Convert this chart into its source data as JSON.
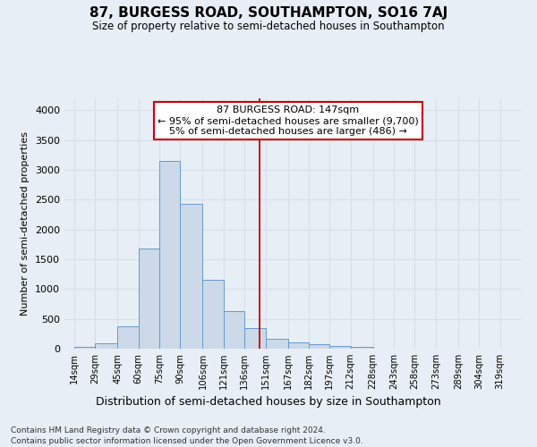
{
  "title": "87, BURGESS ROAD, SOUTHAMPTON, SO16 7AJ",
  "subtitle": "Size of property relative to semi-detached houses in Southampton",
  "xlabel_dist": "Distribution of semi-detached houses by size in Southampton",
  "ylabel": "Number of semi-detached properties",
  "footer1": "Contains HM Land Registry data © Crown copyright and database right 2024.",
  "footer2": "Contains public sector information licensed under the Open Government Licence v3.0.",
  "property_label": "87 BURGESS ROAD: 147sqm",
  "smaller_label": "← 95% of semi-detached houses are smaller (9,700)",
  "larger_label": "5% of semi-detached houses are larger (486) →",
  "bar_left_edges": [
    14,
    29,
    45,
    60,
    75,
    90,
    106,
    121,
    136,
    151,
    167,
    182,
    197,
    212,
    228,
    243,
    258,
    273,
    289,
    304
  ],
  "bar_heights": [
    25,
    90,
    375,
    1680,
    3150,
    2430,
    1150,
    625,
    350,
    165,
    110,
    70,
    45,
    30,
    5,
    5,
    0,
    0,
    0,
    0
  ],
  "bar_widths": [
    15,
    16,
    15,
    15,
    15,
    16,
    15,
    15,
    15,
    16,
    15,
    15,
    15,
    16,
    15,
    15,
    15,
    16,
    15,
    15
  ],
  "bar_color": "#ccd9e8",
  "bar_edge_color": "#6699cc",
  "vline_color": "#cc0000",
  "vline_x": 147,
  "box_facecolor": "#ffffff",
  "box_edgecolor": "#cc0000",
  "ylim": [
    0,
    4200
  ],
  "xlim": [
    7,
    334
  ],
  "background_color": "#e8eef5",
  "grid_color": "#d8dfe8",
  "tick_labels": [
    "14sqm",
    "29sqm",
    "45sqm",
    "60sqm",
    "75sqm",
    "90sqm",
    "106sqm",
    "121sqm",
    "136sqm",
    "151sqm",
    "167sqm",
    "182sqm",
    "197sqm",
    "212sqm",
    "228sqm",
    "243sqm",
    "258sqm",
    "273sqm",
    "289sqm",
    "304sqm",
    "319sqm"
  ],
  "tick_positions": [
    14,
    29,
    45,
    60,
    75,
    90,
    106,
    121,
    136,
    151,
    167,
    182,
    197,
    212,
    228,
    243,
    258,
    273,
    289,
    304,
    319
  ],
  "ytick_positions": [
    0,
    500,
    1000,
    1500,
    2000,
    2500,
    3000,
    3500,
    4000
  ]
}
